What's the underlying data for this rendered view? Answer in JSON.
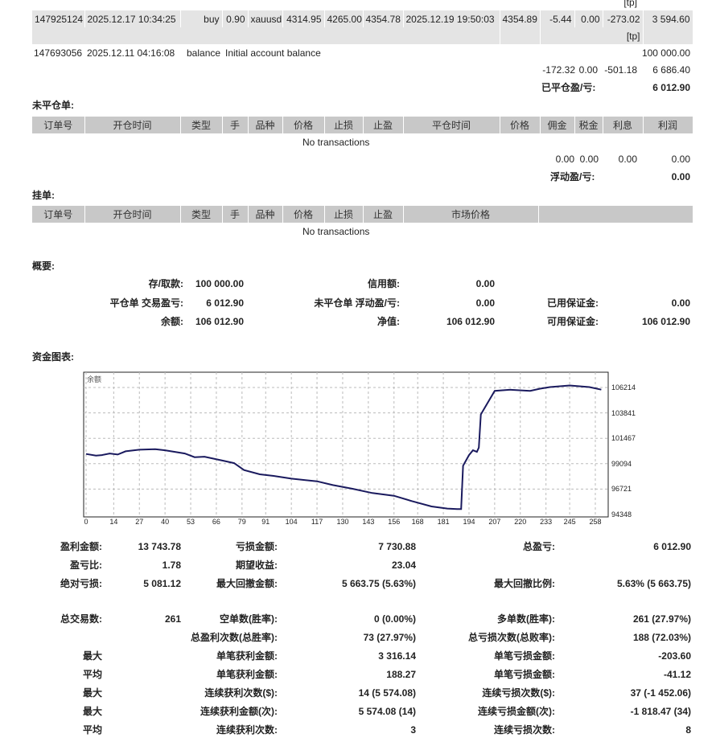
{
  "closed": {
    "tp_top": "[tp]",
    "trade": [
      "147925124",
      "2025.12.17 10:34:25",
      "buy",
      "0.90",
      "xauusd",
      "4314.95",
      "4265.00",
      "4354.78",
      "2025.12.19 19:50:03",
      "4354.89",
      "-5.44",
      "0.00",
      "-273.02",
      "3 594.60"
    ],
    "tp_row": "[tp]",
    "balance_row": {
      "order": "147693056",
      "time": "2025.12.11 04:16:08",
      "type": "balance",
      "comment": "Initial account balance",
      "amount": "100 000.00"
    },
    "totals": {
      "commission": "-172.32",
      "taxes": "0.00",
      "swap": "-501.18",
      "profit": "6 686.40"
    },
    "closed_pl_label": "已平仓盈/亏:",
    "closed_pl_value": "6 012.90"
  },
  "open": {
    "title": "未平仓单:",
    "headers": [
      "订单号",
      "开仓时间",
      "类型",
      "手",
      "品种",
      "价格",
      "止损",
      "止盈",
      "平仓时间",
      "价格",
      "佣金",
      "税金",
      "利息",
      "利润"
    ],
    "empty": "No transactions",
    "totals": {
      "commission": "0.00",
      "taxes": "0.00",
      "swap": "0.00",
      "profit": "0.00"
    },
    "floating_label": "浮动盈/亏:",
    "floating_value": "0.00"
  },
  "pending": {
    "title": "挂单:",
    "headers": [
      "订单号",
      "开仓时间",
      "类型",
      "手",
      "品种",
      "价格",
      "止损",
      "止盈",
      "市场价格",
      ""
    ],
    "empty": "No transactions"
  },
  "summary": {
    "title": "概要:",
    "deposit_label": "存/取款:",
    "deposit": "100 000.00",
    "credit_label": "信用额:",
    "credit": "0.00",
    "closed_pl_label": "平仓单 交易盈亏:",
    "closed_pl": "6 012.90",
    "floating_label": "未平仓单 浮动盈/亏:",
    "floating": "0.00",
    "margin_label": "已用保证金:",
    "margin": "0.00",
    "balance_label": "余额:",
    "balance": "106 012.90",
    "equity_label": "净值:",
    "equity": "106 012.90",
    "free_margin_label": "可用保证金:",
    "free_margin": "106 012.90"
  },
  "chart_title": "资金图表:",
  "chart_data": {
    "type": "line",
    "legend": "余额",
    "x_ticks": [
      "0",
      "14",
      "27",
      "40",
      "53",
      "66",
      "79",
      "91",
      "104",
      "117",
      "130",
      "143",
      "156",
      "168",
      "181",
      "194",
      "207",
      "220",
      "233",
      "245",
      "258"
    ],
    "y_ticks": [
      "106214",
      "103841",
      "101467",
      "99094",
      "96721",
      "94348"
    ],
    "ylim": [
      94348,
      106214
    ],
    "xlim": [
      0,
      261
    ],
    "grid": true,
    "line_color": "#1a1a5e",
    "x": [
      0,
      5,
      8,
      12,
      16,
      20,
      27,
      35,
      40,
      50,
      55,
      60,
      70,
      75,
      80,
      88,
      95,
      104,
      117,
      125,
      135,
      145,
      156,
      165,
      175,
      183,
      188,
      190,
      191,
      194,
      196,
      198,
      199,
      200,
      207,
      215,
      225,
      230,
      235,
      245,
      255,
      261
    ],
    "y": [
      100000,
      99850,
      99900,
      100050,
      99950,
      100250,
      100400,
      100450,
      100350,
      100050,
      99700,
      99750,
      99350,
      99150,
      98500,
      98100,
      97950,
      97700,
      97450,
      97100,
      96750,
      96350,
      96100,
      95600,
      95100,
      94900,
      94850,
      94850,
      98900,
      99900,
      100350,
      100200,
      100600,
      103700,
      105900,
      106000,
      105900,
      106100,
      106250,
      106400,
      106250,
      106013
    ]
  },
  "stats": {
    "r1": [
      "盈利金额:",
      "13 743.78",
      "亏损金额:",
      "7 730.88",
      "总盈亏:",
      "6 012.90"
    ],
    "r2": [
      "盈亏比:",
      "1.78",
      "期望收益:",
      "23.04"
    ],
    "r3": [
      "绝对亏损:",
      "5 081.12",
      "最大回撤金额:",
      "5 663.75 (5.63%)",
      "最大回撤比例:",
      "5.63% (5 663.75)"
    ],
    "r4": [
      "总交易数:",
      "261",
      "空单数(胜率):",
      "0 (0.00%)",
      "多单数(胜率):",
      "261 (27.97%)"
    ],
    "r5": [
      "",
      "",
      "总盈利次数(总胜率):",
      "73 (27.97%)",
      "总亏损次数(总败率):",
      "188 (72.03%)"
    ],
    "r6": [
      "最大",
      "",
      "单笔获利金额:",
      "3 316.14",
      "单笔亏损金额:",
      "-203.60"
    ],
    "r7": [
      "平均",
      "",
      "单笔获利金额:",
      "188.27",
      "单笔亏损金额:",
      "-41.12"
    ],
    "r8": [
      "最大",
      "",
      "连续获利次数($):",
      "14 (5 574.08)",
      "连续亏损次数($):",
      "37 (-1 452.06)"
    ],
    "r9": [
      "最大",
      "",
      "连续获利金额(次):",
      "5 574.08 (14)",
      "连续亏损金额(次):",
      "-1 818.47 (34)"
    ],
    "r10": [
      "平均",
      "",
      "连续获利次数:",
      "3",
      "连续亏损次数:",
      "8"
    ]
  }
}
